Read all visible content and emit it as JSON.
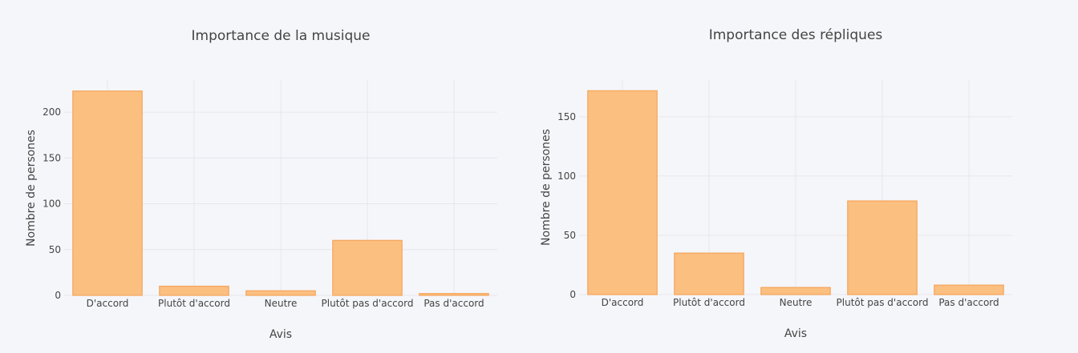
{
  "chart_data": [
    {
      "type": "bar",
      "title": "Importance de la musique",
      "xlabel": "Avis",
      "ylabel": "Nombre de persones",
      "categories": [
        "D'accord",
        "Plutôt d'accord",
        "Neutre",
        "Plutôt pas d'accord",
        "Pas d'accord"
      ],
      "values": [
        223,
        10,
        5,
        60,
        2
      ],
      "ylim": [
        0,
        235
      ],
      "yticks": [
        0,
        50,
        100,
        150,
        200
      ],
      "grid": true,
      "bar_color": "#fbbf80",
      "bar_edge": "#f5a55a"
    },
    {
      "type": "bar",
      "title": "Importance des répliques",
      "xlabel": "Avis",
      "ylabel": "Nombre de persones",
      "categories": [
        "D'accord",
        "Plutôt d'accord",
        "Neutre",
        "Plutôt pas d'accord",
        "Pas d'accord"
      ],
      "values": [
        172,
        35,
        6,
        79,
        8
      ],
      "ylim": [
        0,
        181
      ],
      "yticks": [
        0,
        50,
        100,
        150
      ],
      "grid": true,
      "bar_color": "#fbbf80",
      "bar_edge": "#f5a55a"
    }
  ]
}
